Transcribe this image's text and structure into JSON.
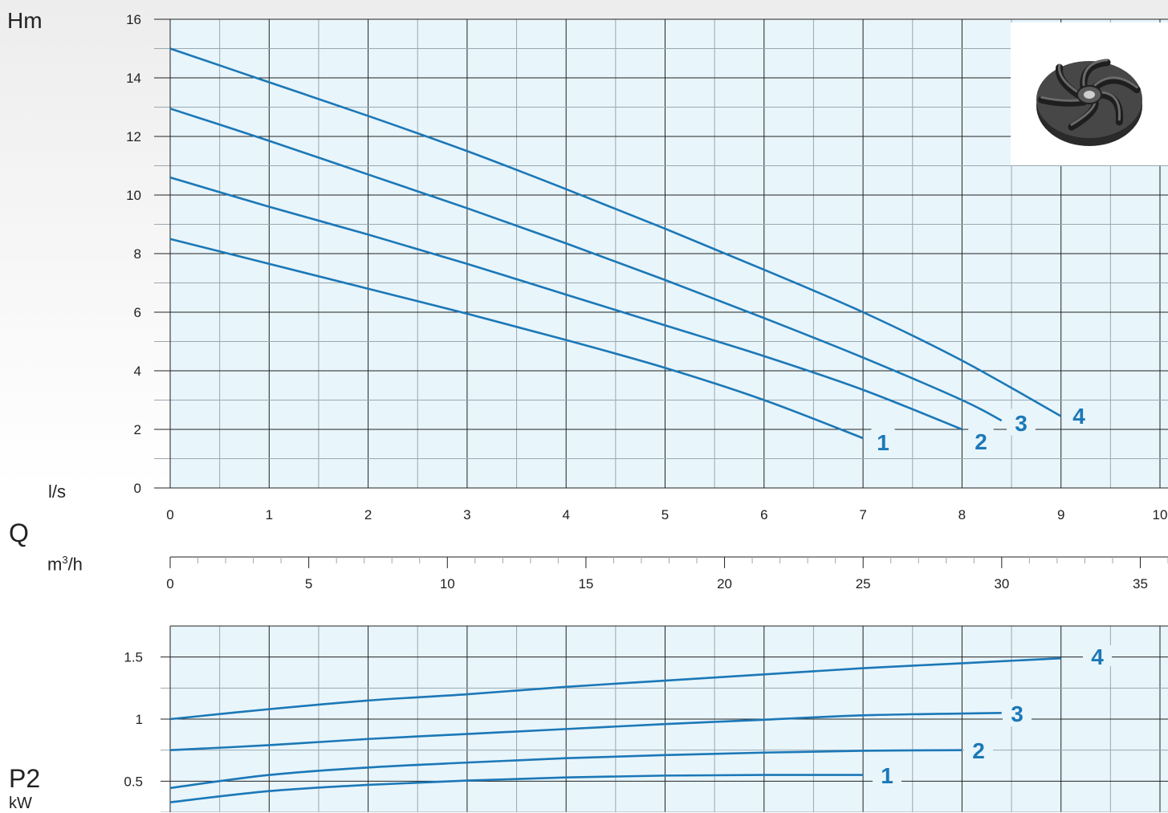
{
  "labels": {
    "head_axis": "Hm",
    "flow_ls_unit": "l/s",
    "flow_symbol": "Q",
    "flow_m3h_unit_base": "m",
    "flow_m3h_unit_sup": "3",
    "flow_m3h_unit_tail": "/h",
    "power_symbol": "P2",
    "power_unit": "kW"
  },
  "colors": {
    "curve": "#1b78b7",
    "plot_bg": "#e8f5fb",
    "grid_major": "#222222",
    "grid_minor": "#9aa8b0",
    "curve_label": "#1b78b7"
  },
  "icons": {
    "impeller": "pump-impeller-icon"
  },
  "chart_data": [
    {
      "type": "line",
      "title": "",
      "xlabel": "l/s",
      "ylabel": "Hm",
      "xlim": [
        0,
        10
      ],
      "ylim": [
        0,
        16
      ],
      "x_ticks": [
        "0",
        "1",
        "2",
        "3",
        "4",
        "5",
        "6",
        "7",
        "8",
        "9",
        "10"
      ],
      "y_ticks": [
        "0",
        "2",
        "4",
        "6",
        "8",
        "10",
        "12",
        "14",
        "16"
      ],
      "secondary_x_axis": {
        "label": "m³/h",
        "range": [
          0,
          36
        ],
        "ticks": [
          "0",
          "5",
          "10",
          "15",
          "20",
          "25",
          "30",
          "35"
        ]
      },
      "grid": true,
      "series": [
        {
          "name": "1",
          "x": [
            0,
            1,
            2,
            3,
            4,
            5,
            6,
            7
          ],
          "y": [
            8.5,
            7.65,
            6.8,
            5.95,
            5.05,
            4.1,
            3.0,
            1.7
          ]
        },
        {
          "name": "2",
          "x": [
            0,
            1,
            2,
            3,
            4,
            5,
            6,
            7,
            8
          ],
          "y": [
            10.6,
            9.6,
            8.65,
            7.65,
            6.6,
            5.55,
            4.5,
            3.35,
            2.0
          ]
        },
        {
          "name": "3",
          "x": [
            0,
            1,
            2,
            3,
            4,
            5,
            6,
            7,
            8,
            8.4
          ],
          "y": [
            12.95,
            11.85,
            10.7,
            9.55,
            8.35,
            7.1,
            5.8,
            4.45,
            3.0,
            2.3
          ]
        },
        {
          "name": "4",
          "x": [
            0,
            1,
            2,
            3,
            4,
            5,
            6,
            7,
            8,
            9
          ],
          "y": [
            15.0,
            13.85,
            12.7,
            11.5,
            10.2,
            8.85,
            7.45,
            6.0,
            4.35,
            2.45
          ]
        }
      ]
    },
    {
      "type": "line",
      "title": "",
      "xlabel": "",
      "ylabel": "P2 kW",
      "xlim": [
        0,
        10
      ],
      "ylim": [
        0.25,
        1.75
      ],
      "y_ticks": [
        "0.5",
        "1",
        "1.5"
      ],
      "grid": true,
      "series": [
        {
          "name": "1",
          "x": [
            0,
            1,
            2,
            3,
            4,
            5,
            6,
            7
          ],
          "y": [
            0.33,
            0.42,
            0.47,
            0.505,
            0.53,
            0.545,
            0.55,
            0.55
          ]
        },
        {
          "name": "2",
          "x": [
            0,
            1,
            2,
            3,
            4,
            5,
            6,
            7,
            8
          ],
          "y": [
            0.445,
            0.55,
            0.61,
            0.65,
            0.685,
            0.71,
            0.73,
            0.745,
            0.75
          ]
        },
        {
          "name": "3",
          "x": [
            0,
            1,
            2,
            3,
            4,
            5,
            6,
            7,
            8,
            8.4
          ],
          "y": [
            0.75,
            0.79,
            0.84,
            0.88,
            0.92,
            0.96,
            0.995,
            1.03,
            1.045,
            1.05
          ]
        },
        {
          "name": "4",
          "x": [
            0,
            1,
            2,
            3,
            4,
            5,
            6,
            7,
            8,
            9
          ],
          "y": [
            1.0,
            1.08,
            1.15,
            1.2,
            1.26,
            1.31,
            1.36,
            1.41,
            1.45,
            1.49
          ]
        }
      ]
    }
  ]
}
